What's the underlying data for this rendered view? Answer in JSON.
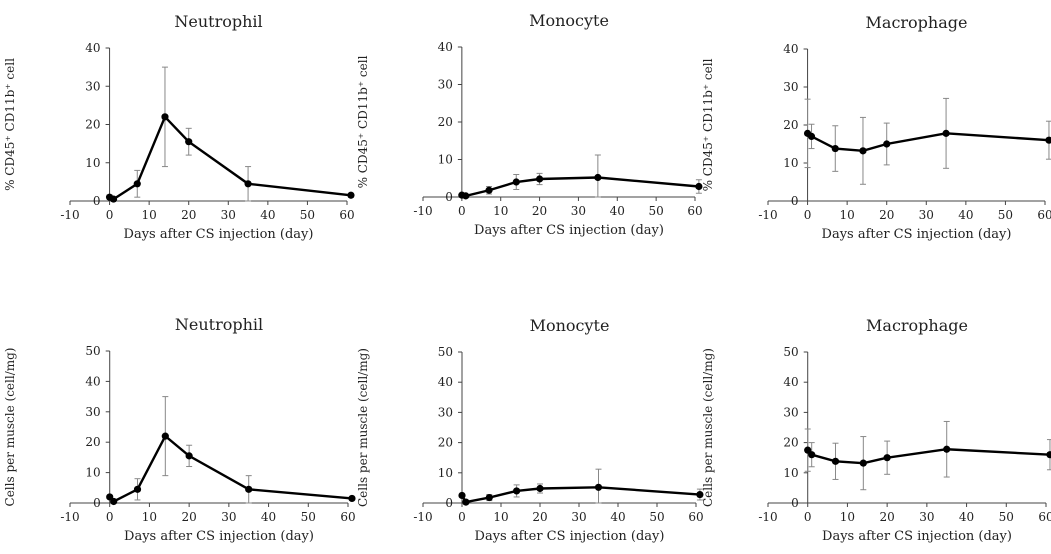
{
  "chart_data": [
    {
      "type": "line",
      "title": "Neutrophil",
      "xlabel": "Days after CS injection (day)",
      "ylabel": "% CD45⁺ CD11b⁺ cell",
      "xlim": [
        -10,
        60
      ],
      "ylim": [
        0,
        40
      ],
      "xticks": [
        -10,
        0,
        10,
        20,
        30,
        40,
        50,
        60
      ],
      "yticks": [
        0,
        10,
        20,
        30,
        40
      ],
      "x": [
        0,
        1,
        7,
        14,
        20,
        35,
        61
      ],
      "y": [
        1,
        0.5,
        4.5,
        22,
        15.5,
        4.5,
        1.5
      ],
      "err": [
        0.5,
        0.5,
        3.5,
        13,
        3.5,
        4.5,
        0.5
      ]
    },
    {
      "type": "line",
      "title": "Monocyte",
      "xlabel": "Days after CS injection (day)",
      "ylabel": "% CD45⁺ CD11b⁺ cell",
      "xlim": [
        -10,
        60
      ],
      "ylim": [
        0,
        40
      ],
      "xticks": [
        -10,
        0,
        10,
        20,
        30,
        40,
        50,
        60
      ],
      "yticks": [
        0,
        10,
        20,
        30,
        40
      ],
      "x": [
        0,
        1,
        7,
        14,
        20,
        35,
        61
      ],
      "y": [
        0.5,
        0.3,
        1.8,
        4,
        4.8,
        5.2,
        2.8
      ],
      "err": [
        0.3,
        0.3,
        1,
        2,
        1.5,
        6,
        1.8
      ]
    },
    {
      "type": "line",
      "title": "Macrophage",
      "xlabel": "Days after CS injection (day)",
      "ylabel": "% CD45⁺ CD11b⁺ cell",
      "xlim": [
        -10,
        60
      ],
      "ylim": [
        0,
        40
      ],
      "xticks": [
        -10,
        0,
        10,
        20,
        30,
        40,
        50,
        60
      ],
      "yticks": [
        0,
        10,
        20,
        30,
        40
      ],
      "x": [
        0,
        1,
        7,
        14,
        20,
        35,
        61
      ],
      "y": [
        17.8,
        17,
        13.8,
        13.2,
        15,
        17.8,
        16
      ],
      "err": [
        9,
        3.2,
        6,
        8.8,
        5.5,
        9.2,
        5
      ]
    },
    {
      "type": "line",
      "title": "Neutrophil",
      "xlabel": "Days after CS injection (day)",
      "ylabel": "Cells per muscle (cell/mg)",
      "xlim": [
        -10,
        60
      ],
      "ylim": [
        0,
        50
      ],
      "xticks": [
        -10,
        0,
        10,
        20,
        30,
        40,
        50,
        60
      ],
      "yticks": [
        0,
        10,
        20,
        30,
        40,
        50
      ],
      "x": [
        0,
        1,
        7,
        14,
        20,
        35,
        61
      ],
      "y": [
        2,
        0.5,
        4.5,
        22,
        15.5,
        4.5,
        1.5
      ],
      "err": [
        0.5,
        0.5,
        3.5,
        13,
        3.5,
        4.5,
        0.5
      ]
    },
    {
      "type": "line",
      "title": "Monocyte",
      "xlabel": "Days after CS injection (day)",
      "ylabel": "Cells per muscle (cell/mg)",
      "xlim": [
        -10,
        60
      ],
      "ylim": [
        0,
        50
      ],
      "xticks": [
        -10,
        0,
        10,
        20,
        30,
        40,
        50,
        60
      ],
      "yticks": [
        0,
        10,
        20,
        30,
        40,
        50
      ],
      "x": [
        0,
        1,
        7,
        14,
        20,
        35,
        61
      ],
      "y": [
        2.5,
        0.3,
        1.8,
        4,
        4.8,
        5.2,
        2.8
      ],
      "err": [
        0.3,
        0.3,
        1,
        2,
        1.5,
        6,
        1.8
      ]
    },
    {
      "type": "line",
      "title": "Macrophage",
      "xlabel": "Days after CS injection (day)",
      "ylabel": "Cells per muscle (cell/mg)",
      "xlim": [
        -10,
        60
      ],
      "ylim": [
        0,
        50
      ],
      "xticks": [
        -10,
        0,
        10,
        20,
        30,
        40,
        50,
        60
      ],
      "yticks": [
        0,
        10,
        20,
        30,
        40,
        50
      ],
      "x": [
        0,
        1,
        7,
        14,
        20,
        35,
        61
      ],
      "y": [
        17.5,
        16,
        13.8,
        13.2,
        15,
        17.8,
        16
      ],
      "err": [
        7,
        4,
        6,
        8.8,
        5.5,
        9.2,
        5
      ]
    }
  ]
}
